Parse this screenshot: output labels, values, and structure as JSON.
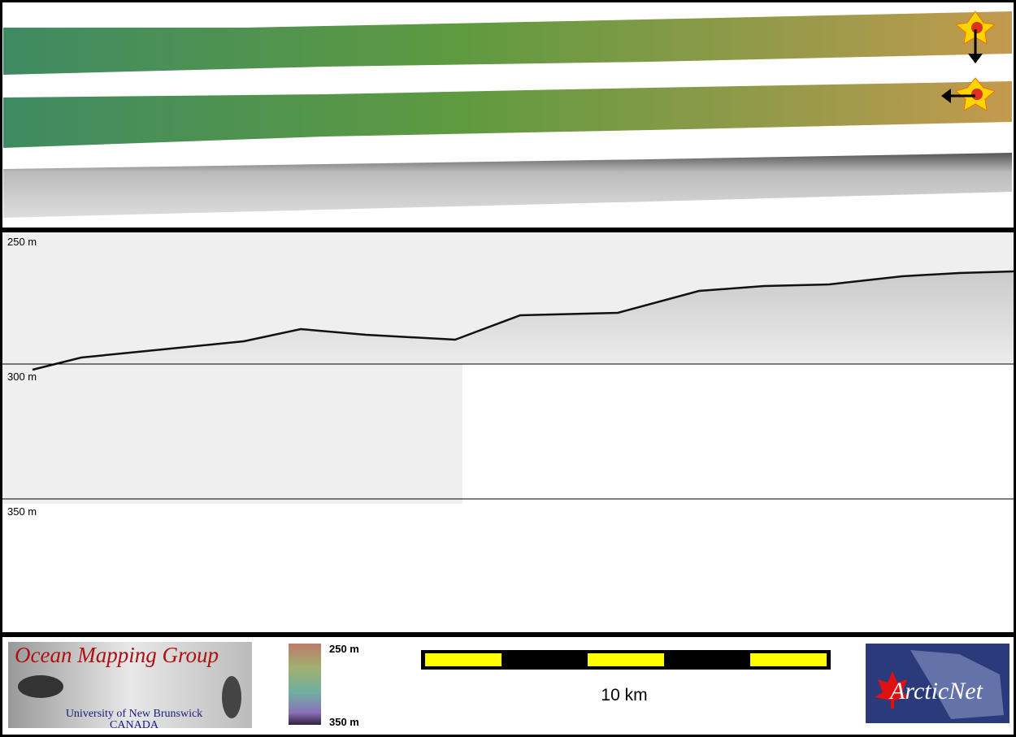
{
  "panels": {
    "depth_labels": [
      "250 m",
      "300 m",
      "350 m"
    ]
  },
  "legend": {
    "colorbar_top": "250 m",
    "colorbar_bottom": "350 m"
  },
  "scale_bar": {
    "label": "10 km"
  },
  "logos": {
    "omg": {
      "title": "Ocean Mapping Group",
      "university": "University of New Brunswick",
      "country": "CANADA"
    },
    "arcticnet": "ArcticNet"
  }
}
